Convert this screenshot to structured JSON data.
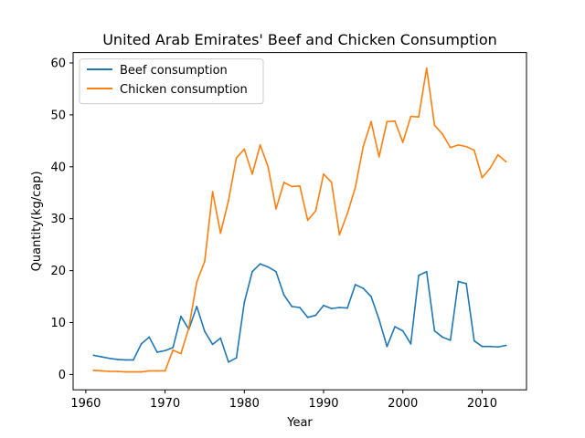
{
  "chart_data": {
    "type": "line",
    "title": "United Arab Emirates' Beef and Chicken Consumption",
    "xlabel": "Year",
    "ylabel": "Quantity(kg/cap)",
    "xlim": [
      1958.4,
      2015.6
    ],
    "ylim": [
      -2.95,
      62.0
    ],
    "x_ticks": [
      1960,
      1970,
      1980,
      1990,
      2000,
      2010
    ],
    "y_ticks": [
      0,
      10,
      20,
      30,
      40,
      50,
      60
    ],
    "grid": false,
    "legend_position": "upper-left",
    "x": [
      1961,
      1962,
      1963,
      1964,
      1965,
      1966,
      1967,
      1968,
      1969,
      1970,
      1971,
      1972,
      1973,
      1974,
      1975,
      1976,
      1977,
      1978,
      1979,
      1980,
      1981,
      1982,
      1983,
      1984,
      1985,
      1986,
      1987,
      1988,
      1989,
      1990,
      1991,
      1992,
      1993,
      1994,
      1995,
      1996,
      1997,
      1998,
      1999,
      2000,
      2001,
      2002,
      2003,
      2004,
      2005,
      2006,
      2007,
      2008,
      2009,
      2010,
      2011,
      2012,
      2013
    ],
    "series": [
      {
        "name": "Beef consumption",
        "color": "#1f77b4",
        "values": [
          3.7,
          3.4,
          3.1,
          2.9,
          2.8,
          2.8,
          5.9,
          7.2,
          4.3,
          4.6,
          5.2,
          11.2,
          8.7,
          13.1,
          8.3,
          5.8,
          7.0,
          2.4,
          3.2,
          13.9,
          19.8,
          21.3,
          20.7,
          19.8,
          15.3,
          13.1,
          12.9,
          11.0,
          11.4,
          13.3,
          12.7,
          12.9,
          12.8,
          17.3,
          16.6,
          15.0,
          10.6,
          5.4,
          9.2,
          8.4,
          5.9,
          19.1,
          19.8,
          8.4,
          7.2,
          6.6,
          17.9,
          17.5,
          6.5,
          5.4,
          5.4,
          5.3,
          5.6
        ]
      },
      {
        "name": "Chicken consumption",
        "color": "#ff7f0e",
        "values": [
          0.8,
          0.7,
          0.6,
          0.6,
          0.5,
          0.5,
          0.5,
          0.7,
          0.7,
          0.7,
          4.7,
          4.0,
          9.0,
          17.8,
          21.8,
          35.2,
          27.2,
          33.5,
          41.7,
          43.4,
          38.6,
          44.2,
          40.0,
          31.9,
          37.0,
          36.2,
          36.3,
          29.7,
          31.5,
          38.6,
          37.0,
          26.9,
          31.0,
          36.0,
          43.9,
          48.7,
          41.9,
          48.7,
          48.8,
          44.7,
          49.7,
          49.6,
          59.0,
          48.0,
          46.3,
          43.7,
          44.2,
          43.9,
          43.2,
          37.9,
          39.7,
          42.3,
          41.0
        ]
      }
    ]
  }
}
